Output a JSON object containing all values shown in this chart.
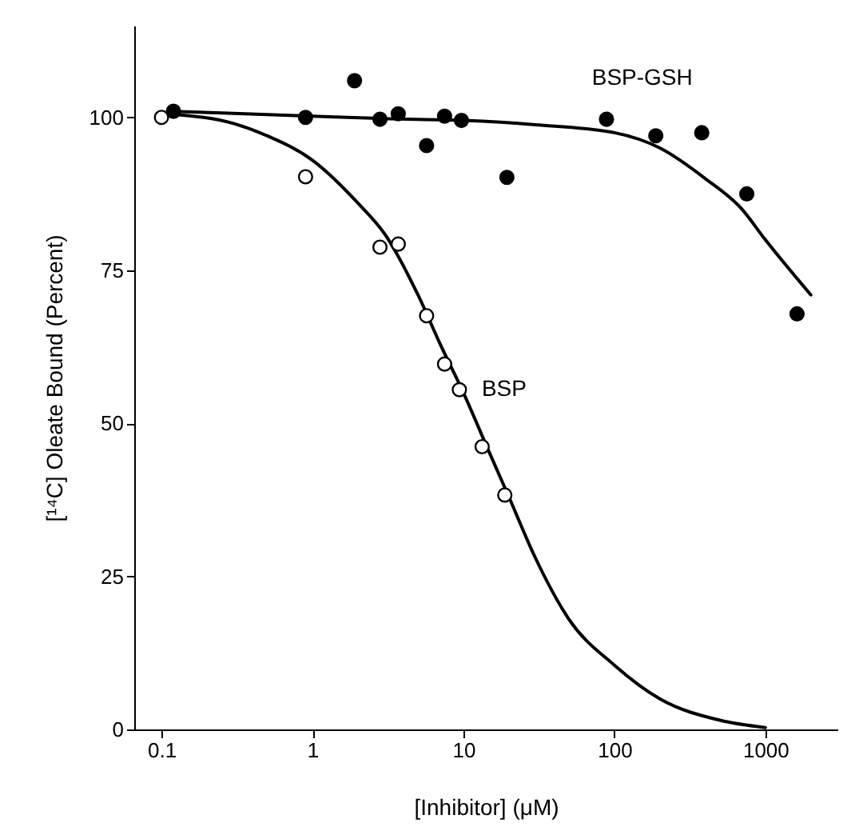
{
  "chart_data": {
    "type": "scatter",
    "xlabel": "[Inhibitor] (μM)",
    "ylabel": "[¹⁴C] Oleate Bound (Percent)",
    "log": "x",
    "xlim": [
      0.066,
      3000
    ],
    "xticks": [
      0.1,
      1,
      10,
      100,
      1000
    ],
    "ylim": [
      0,
      115
    ],
    "yticks": [
      0,
      25,
      50,
      75,
      100
    ],
    "grid": false,
    "marker": "circle",
    "series": [
      {
        "name": "BSP-GSH",
        "color": "#000000",
        "x": [
          0.12,
          0.9,
          1.9,
          2.8,
          3.7,
          5.7,
          7.5,
          9.7,
          19.4,
          88.6,
          188,
          379,
          753,
          1620
        ],
        "values": [
          101,
          100,
          106,
          99.7,
          100.6,
          95.4,
          100.2,
          99.5,
          90.2,
          99.7,
          97,
          97.5,
          87.5,
          67.9
        ]
      },
      {
        "name": "BSP",
        "color": "#ffffff",
        "x": [
          0.1,
          0.9,
          2.8,
          3.7,
          5.7,
          7.5,
          9.4,
          13.3,
          18.8
        ],
        "values": [
          100,
          90.3,
          78.8,
          79.3,
          67.6,
          59.7,
          55.5,
          46.2,
          38.3
        ]
      },
      {
        "type": "line",
        "marker": "none",
        "color": "#000000",
        "x": [
          0.12,
          1,
          3,
          10,
          30,
          100,
          200,
          400,
          700,
          1000,
          2000
        ],
        "values": [
          101,
          100.2,
          99.8,
          99.5,
          98.8,
          97.5,
          95,
          90,
          85,
          80,
          71
        ]
      },
      {
        "type": "line",
        "marker": "none",
        "color": "#000000",
        "x": [
          0.12,
          0.3,
          0.5,
          1,
          2,
          3,
          5,
          7,
          10,
          15,
          20,
          30,
          50,
          100,
          200,
          500,
          1000
        ],
        "values": [
          100.5,
          99,
          97,
          93,
          86,
          81,
          71,
          63,
          55,
          45,
          38,
          28,
          18,
          10.5,
          5,
          1.5,
          0.3
        ]
      }
    ]
  }
}
